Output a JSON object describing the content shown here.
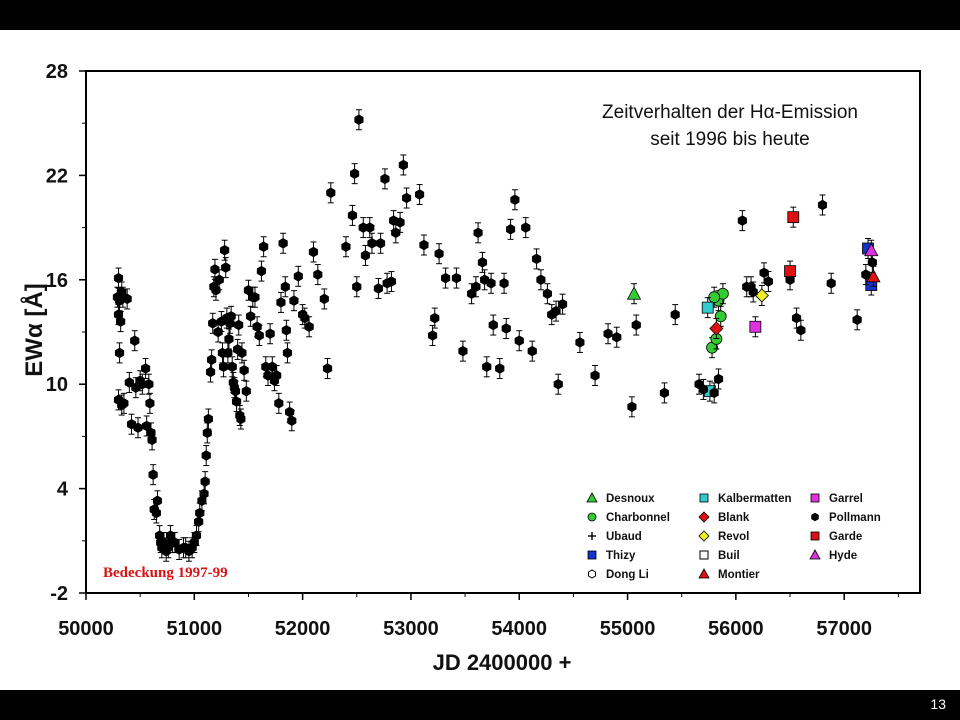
{
  "page_number": "13",
  "chart_data": {
    "type": "scatter",
    "title_lines": [
      "Zeitverhalten der Hα-Emission",
      "seit 1996 bis heute"
    ],
    "xlabel": "JD 2400000 +",
    "ylabel": "EWα [Å]",
    "xlim": [
      50000,
      57700
    ],
    "ylim": [
      -2,
      28
    ],
    "xticks": [
      50000,
      51000,
      52000,
      53000,
      54000,
      55000,
      56000,
      57000
    ],
    "yticks": [
      -2,
      4,
      10,
      16,
      22,
      28
    ],
    "grid": false,
    "legend_position": "bottom-right",
    "annotation": "Bedeckung 1997-99",
    "series": [
      {
        "name": "Desnoux",
        "marker": "triangle",
        "color": "#33cc33",
        "points": [
          [
            55060,
            15.2
          ]
        ]
      },
      {
        "name": "Charbonnel",
        "marker": "circle",
        "color": "#33cc33",
        "points": [
          [
            55780,
            12.1
          ],
          [
            55820,
            12.6
          ],
          [
            55840,
            14.8
          ],
          [
            55860,
            13.9
          ],
          [
            55880,
            15.2
          ],
          [
            55800,
            15.0
          ]
        ]
      },
      {
        "name": "Ubaud",
        "marker": "plus",
        "color": "#000000",
        "points": []
      },
      {
        "name": "Thizy",
        "marker": "square",
        "color": "#1133cc",
        "points": [
          [
            57220,
            17.8
          ],
          [
            57250,
            15.7
          ]
        ]
      },
      {
        "name": "Dong Li",
        "marker": "openhex",
        "color": "#000000",
        "points": []
      },
      {
        "name": "Kalbermatten",
        "marker": "square",
        "color": "#33cccc",
        "points": [
          [
            55740,
            14.4
          ],
          [
            55760,
            9.6
          ]
        ]
      },
      {
        "name": "Blank",
        "marker": "diamond",
        "color": "#dd1111",
        "points": [
          [
            55820,
            13.2
          ]
        ]
      },
      {
        "name": "Revol",
        "marker": "diamond",
        "color": "#eeee22",
        "points": [
          [
            56240,
            15.1
          ]
        ]
      },
      {
        "name": "Buil",
        "marker": "opensquare",
        "color": "#000000",
        "points": []
      },
      {
        "name": "Montier",
        "marker": "triangle",
        "color": "#dd1111",
        "points": [
          [
            57270,
            16.2
          ]
        ]
      },
      {
        "name": "Garrel",
        "marker": "square",
        "color": "#dd33dd",
        "points": [
          [
            56180,
            13.3
          ]
        ]
      },
      {
        "name": "Pollmann",
        "marker": "hexagon",
        "color": "#000000",
        "points": [
          [
            50290,
            15.0
          ],
          [
            50300,
            16.1
          ],
          [
            50310,
            14.8
          ],
          [
            50320,
            13.6
          ],
          [
            50330,
            15.3
          ],
          [
            50300,
            14.0
          ],
          [
            50310,
            11.8
          ],
          [
            50340,
            15.0
          ],
          [
            50300,
            9.1
          ],
          [
            50330,
            8.8
          ],
          [
            50350,
            8.9
          ],
          [
            50380,
            14.9
          ],
          [
            50400,
            10.1
          ],
          [
            50420,
            7.7
          ],
          [
            50450,
            12.5
          ],
          [
            50460,
            9.8
          ],
          [
            50480,
            7.5
          ],
          [
            50500,
            10.2
          ],
          [
            50520,
            10.0
          ],
          [
            50550,
            10.9
          ],
          [
            50580,
            10.0
          ],
          [
            50560,
            7.6
          ],
          [
            50590,
            8.9
          ],
          [
            50600,
            7.2
          ],
          [
            50610,
            6.8
          ],
          [
            50620,
            4.8
          ],
          [
            50630,
            2.8
          ],
          [
            50650,
            2.6
          ],
          [
            50660,
            3.3
          ],
          [
            50680,
            1.3
          ],
          [
            50690,
            0.9
          ],
          [
            50700,
            0.6
          ],
          [
            50720,
            0.9
          ],
          [
            50740,
            0.4
          ],
          [
            50760,
            0.6
          ],
          [
            50780,
            1.3
          ],
          [
            50800,
            0.9
          ],
          [
            50820,
            0.9
          ],
          [
            50860,
            0.5
          ],
          [
            50900,
            0.6
          ],
          [
            50920,
            0.6
          ],
          [
            50950,
            0.4
          ],
          [
            50980,
            0.6
          ],
          [
            51000,
            0.9
          ],
          [
            51020,
            1.3
          ],
          [
            51040,
            2.1
          ],
          [
            51050,
            2.6
          ],
          [
            51070,
            3.3
          ],
          [
            51090,
            3.7
          ],
          [
            51100,
            4.4
          ],
          [
            51110,
            5.9
          ],
          [
            51120,
            7.2
          ],
          [
            51130,
            8.0
          ],
          [
            51150,
            10.7
          ],
          [
            51160,
            11.4
          ],
          [
            51170,
            13.5
          ],
          [
            51180,
            15.6
          ],
          [
            51190,
            16.6
          ],
          [
            51200,
            15.4
          ],
          [
            51220,
            13.0
          ],
          [
            51230,
            16.0
          ],
          [
            51250,
            13.6
          ],
          [
            51260,
            11.8
          ],
          [
            51270,
            11.0
          ],
          [
            51280,
            17.7
          ],
          [
            51290,
            16.7
          ],
          [
            51300,
            13.8
          ],
          [
            51310,
            11.8
          ],
          [
            51320,
            12.6
          ],
          [
            51330,
            13.5
          ],
          [
            51340,
            13.9
          ],
          [
            51350,
            11.0
          ],
          [
            51360,
            10.1
          ],
          [
            51370,
            9.8
          ],
          [
            51380,
            9.6
          ],
          [
            51390,
            9.0
          ],
          [
            51400,
            12.0
          ],
          [
            51410,
            13.4
          ],
          [
            51420,
            8.2
          ],
          [
            51430,
            8.0
          ],
          [
            51440,
            11.8
          ],
          [
            51460,
            10.8
          ],
          [
            51480,
            9.6
          ],
          [
            51500,
            15.4
          ],
          [
            51520,
            13.9
          ],
          [
            51540,
            15.0
          ],
          [
            51560,
            15.0
          ],
          [
            51580,
            13.3
          ],
          [
            51600,
            12.8
          ],
          [
            51620,
            16.5
          ],
          [
            51640,
            17.9
          ],
          [
            51660,
            11.0
          ],
          [
            51680,
            10.5
          ],
          [
            51700,
            12.9
          ],
          [
            51720,
            11.0
          ],
          [
            51740,
            10.2
          ],
          [
            51760,
            10.5
          ],
          [
            51780,
            8.9
          ],
          [
            51800,
            14.7
          ],
          [
            51820,
            18.1
          ],
          [
            51840,
            15.6
          ],
          [
            51850,
            13.1
          ],
          [
            51860,
            11.8
          ],
          [
            51880,
            8.4
          ],
          [
            51900,
            7.9
          ],
          [
            51920,
            14.8
          ],
          [
            51960,
            16.2
          ],
          [
            52000,
            14.0
          ],
          [
            52020,
            13.8
          ],
          [
            52060,
            13.3
          ],
          [
            52100,
            17.6
          ],
          [
            52140,
            16.3
          ],
          [
            52200,
            14.9
          ],
          [
            52230,
            10.9
          ],
          [
            52260,
            21.0
          ],
          [
            52400,
            17.9
          ],
          [
            52460,
            19.7
          ],
          [
            52480,
            22.1
          ],
          [
            52500,
            15.6
          ],
          [
            52520,
            25.2
          ],
          [
            52560,
            19.0
          ],
          [
            52580,
            17.4
          ],
          [
            52620,
            19.0
          ],
          [
            52640,
            18.1
          ],
          [
            52700,
            15.5
          ],
          [
            52720,
            18.1
          ],
          [
            52760,
            21.8
          ],
          [
            52780,
            15.8
          ],
          [
            52820,
            15.9
          ],
          [
            52840,
            19.4
          ],
          [
            52860,
            18.7
          ],
          [
            52900,
            19.3
          ],
          [
            52930,
            22.6
          ],
          [
            52960,
            20.7
          ],
          [
            53080,
            20.9
          ],
          [
            53120,
            18.0
          ],
          [
            53200,
            12.8
          ],
          [
            53220,
            13.8
          ],
          [
            53260,
            17.5
          ],
          [
            53320,
            16.1
          ],
          [
            53420,
            16.1
          ],
          [
            53480,
            11.9
          ],
          [
            53560,
            15.2
          ],
          [
            53600,
            15.6
          ],
          [
            53620,
            18.7
          ],
          [
            53660,
            17.0
          ],
          [
            53680,
            16.0
          ],
          [
            53700,
            11.0
          ],
          [
            53740,
            15.8
          ],
          [
            53760,
            13.4
          ],
          [
            53820,
            10.9
          ],
          [
            53860,
            15.8
          ],
          [
            53880,
            13.2
          ],
          [
            53920,
            18.9
          ],
          [
            53960,
            20.6
          ],
          [
            54000,
            12.5
          ],
          [
            54060,
            19.0
          ],
          [
            54120,
            11.9
          ],
          [
            54160,
            17.2
          ],
          [
            54200,
            16.0
          ],
          [
            54260,
            15.2
          ],
          [
            54300,
            14.0
          ],
          [
            54340,
            14.2
          ],
          [
            54360,
            10.0
          ],
          [
            54400,
            14.6
          ],
          [
            54560,
            12.4
          ],
          [
            54700,
            10.5
          ],
          [
            54820,
            12.9
          ],
          [
            54900,
            12.7
          ],
          [
            55040,
            8.7
          ],
          [
            55080,
            13.4
          ],
          [
            55340,
            9.5
          ],
          [
            55440,
            14.0
          ],
          [
            55660,
            10.0
          ],
          [
            55700,
            9.7
          ],
          [
            55800,
            9.5
          ],
          [
            55840,
            10.3
          ],
          [
            56060,
            19.4
          ],
          [
            56100,
            15.6
          ],
          [
            56140,
            15.6
          ],
          [
            56160,
            15.3
          ],
          [
            56260,
            16.4
          ],
          [
            56300,
            15.9
          ],
          [
            56500,
            16.0
          ],
          [
            56560,
            13.8
          ],
          [
            56600,
            13.1
          ],
          [
            56800,
            20.3
          ],
          [
            56880,
            15.8
          ],
          [
            57120,
            13.7
          ],
          [
            57200,
            16.3
          ],
          [
            57260,
            17.0
          ]
        ]
      },
      {
        "name": "Garde",
        "marker": "square",
        "color": "#dd1111",
        "points": [
          [
            56500,
            16.5
          ],
          [
            56530,
            19.6
          ]
        ]
      },
      {
        "name": "Hyde",
        "marker": "triangle",
        "color": "#dd33dd",
        "points": [
          [
            57250,
            17.7
          ]
        ]
      }
    ]
  },
  "colors": {
    "background": "#ffffff",
    "frame": "#000000",
    "annotation": "#dd1111"
  }
}
